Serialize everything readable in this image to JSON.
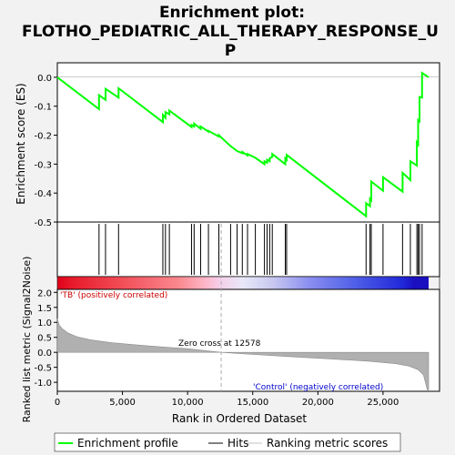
{
  "chart_data": {
    "type": "line",
    "title_lines": [
      "Enrichment plot:",
      "FLOTHO_PEDIATRIC_ALL_THERAPY_RESPONSE_U",
      "P"
    ],
    "es_panel": {
      "ylabel": "Enrichment score (ES)",
      "ylim": [
        -0.5,
        0.05
      ],
      "yticks": [
        "0.0",
        "-0.1",
        "-0.2",
        "-0.3",
        "-0.4",
        "-0.5"
      ],
      "series_name": "Enrichment profile",
      "color": "#00ff00",
      "points": [
        [
          0,
          0.0
        ],
        [
          3200,
          -0.11
        ],
        [
          3200,
          -0.062
        ],
        [
          3700,
          -0.078
        ],
        [
          3700,
          -0.04
        ],
        [
          4700,
          -0.07
        ],
        [
          4700,
          -0.038
        ],
        [
          8100,
          -0.155
        ],
        [
          8100,
          -0.13
        ],
        [
          8300,
          -0.14
        ],
        [
          8300,
          -0.12
        ],
        [
          8600,
          -0.128
        ],
        [
          8600,
          -0.115
        ],
        [
          10300,
          -0.172
        ],
        [
          10300,
          -0.165
        ],
        [
          10500,
          -0.17
        ],
        [
          10500,
          -0.16
        ],
        [
          11000,
          -0.178
        ],
        [
          11000,
          -0.17
        ],
        [
          11600,
          -0.188
        ],
        [
          11600,
          -0.185
        ],
        [
          12400,
          -0.205
        ],
        [
          12400,
          -0.2
        ],
        [
          13300,
          -0.238
        ],
        [
          13800,
          -0.255
        ],
        [
          14200,
          -0.262
        ],
        [
          14200,
          -0.258
        ],
        [
          14600,
          -0.27
        ],
        [
          14600,
          -0.265
        ],
        [
          15200,
          -0.278
        ],
        [
          15900,
          -0.3
        ],
        [
          15900,
          -0.29
        ],
        [
          16100,
          -0.295
        ],
        [
          16100,
          -0.285
        ],
        [
          16300,
          -0.29
        ],
        [
          16300,
          -0.28
        ],
        [
          16500,
          -0.275
        ],
        [
          16500,
          -0.265
        ],
        [
          17500,
          -0.3
        ],
        [
          17500,
          -0.28
        ],
        [
          17600,
          -0.285
        ],
        [
          17600,
          -0.268
        ],
        [
          23700,
          -0.48
        ],
        [
          23700,
          -0.435
        ],
        [
          24000,
          -0.445
        ],
        [
          24000,
          -0.42
        ],
        [
          24100,
          -0.425
        ],
        [
          24100,
          -0.36
        ],
        [
          25000,
          -0.392
        ],
        [
          25000,
          -0.345
        ],
        [
          26500,
          -0.395
        ],
        [
          26500,
          -0.33
        ],
        [
          27100,
          -0.355
        ],
        [
          27100,
          -0.29
        ],
        [
          27600,
          -0.305
        ],
        [
          27600,
          -0.225
        ],
        [
          27700,
          -0.232
        ],
        [
          27700,
          -0.148
        ],
        [
          27800,
          -0.152
        ],
        [
          27800,
          -0.068
        ],
        [
          28000,
          -0.07
        ],
        [
          28000,
          0.015
        ],
        [
          28500,
          0.0
        ]
      ]
    },
    "hits": {
      "name": "Hits",
      "positions": [
        3200,
        3700,
        4700,
        8100,
        8300,
        8600,
        10300,
        10500,
        11000,
        11600,
        12400,
        13300,
        13800,
        14200,
        14600,
        15200,
        15900,
        16100,
        16300,
        16500,
        17500,
        17600,
        23700,
        24000,
        24100,
        25000,
        26500,
        27100,
        27600,
        27700,
        27800,
        28000
      ]
    },
    "metric_panel": {
      "ylabel": "Ranked list metric (Signal2Noise)",
      "ylim": [
        -1.3,
        2.1
      ],
      "yticks": [
        "2.0",
        "1.5",
        "1.0",
        "0.5",
        "0.0",
        "-0.5",
        "-1.0"
      ],
      "series_name": "Ranking metric scores",
      "shape_points": [
        [
          0,
          1.12
        ],
        [
          150,
          0.9
        ],
        [
          400,
          0.78
        ],
        [
          800,
          0.65
        ],
        [
          1500,
          0.52
        ],
        [
          2500,
          0.42
        ],
        [
          4000,
          0.33
        ],
        [
          6000,
          0.25
        ],
        [
          8000,
          0.18
        ],
        [
          10000,
          0.12
        ],
        [
          12578,
          0.0
        ],
        [
          15000,
          -0.07
        ],
        [
          18000,
          -0.15
        ],
        [
          21000,
          -0.22
        ],
        [
          24000,
          -0.3
        ],
        [
          26000,
          -0.38
        ],
        [
          27000,
          -0.46
        ],
        [
          27700,
          -0.58
        ],
        [
          28100,
          -0.75
        ],
        [
          28400,
          -1.25
        ],
        [
          28500,
          -1.25
        ]
      ],
      "zero_cross_label": "Zero cross at 12578",
      "zero_cross": 12578,
      "pos_label": "'TB' (positively correlated)",
      "neg_label": "'Control' (negatively correlated)"
    },
    "x": {
      "label": "Rank in Ordered Dataset",
      "max": 28500,
      "ticks": [
        0,
        5000,
        10000,
        15000,
        20000,
        25000
      ],
      "tick_labels": [
        "0",
        "5,000",
        "10,000",
        "15,000",
        "20,000",
        "25,000"
      ]
    },
    "colors": {
      "profile": "#00ff00",
      "hit": "#000000",
      "metric_fill": "#b0b0b0",
      "zero_line": "#aaaaaa"
    },
    "legend": {
      "position": "bottom",
      "entries": [
        "Enrichment profile",
        "Hits",
        "Ranking metric scores"
      ]
    }
  }
}
